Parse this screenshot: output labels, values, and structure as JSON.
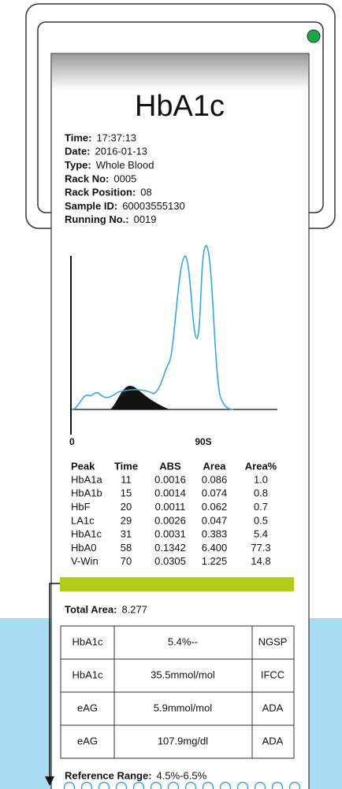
{
  "title": "HbA1c",
  "info": [
    {
      "label": "Time:",
      "value": "17:37:13"
    },
    {
      "label": "Date:",
      "value": "2016-01-13"
    },
    {
      "label": "Type:",
      "value": "Whole Blood"
    },
    {
      "label": "Rack No:",
      "value": "0005"
    },
    {
      "label": "Rack Position:",
      "value": "08"
    },
    {
      "label": "Sample ID:",
      "value": "60003555130"
    },
    {
      "label": "Running No.:",
      "value": "0019"
    }
  ],
  "chromatogram": {
    "x_labels": [
      "0",
      "90S"
    ]
  },
  "table": {
    "headers": [
      "Peak",
      "Time",
      "ABS",
      "Area",
      "Area%"
    ],
    "rows": [
      [
        "HbA1a",
        "11",
        "0.0016",
        "0.086",
        "1.0"
      ],
      [
        "HbA1b",
        "15",
        "0.0014",
        "0.074",
        "0.8"
      ],
      [
        "HbF",
        "20",
        "0.0011",
        "0.062",
        "0.7"
      ],
      [
        "LA1c",
        "29",
        "0.0026",
        "0.047",
        "0.5"
      ],
      [
        "HbA1c",
        "31",
        "0.0031",
        "0.383",
        "5.4"
      ],
      [
        "HbA0",
        "58",
        "0.1342",
        "6.400",
        "77.3"
      ],
      [
        "V-Win",
        "70",
        "0.0305",
        "1.225",
        "14.8"
      ]
    ]
  },
  "total_area": {
    "label": "Total Area:",
    "value": "8.277"
  },
  "results": [
    [
      "HbA1c",
      "5.4%--",
      "NGSP"
    ],
    [
      "HbA1c",
      "35.5mmol/mol",
      "IFCC"
    ],
    [
      "eAG",
      "5.9mmol/mol",
      "ADA"
    ],
    [
      "eAG",
      "107.9mg/dl",
      "ADA"
    ]
  ],
  "reference_range": {
    "label": "Reference Range:",
    "value": "4.5%-6.5%"
  }
}
